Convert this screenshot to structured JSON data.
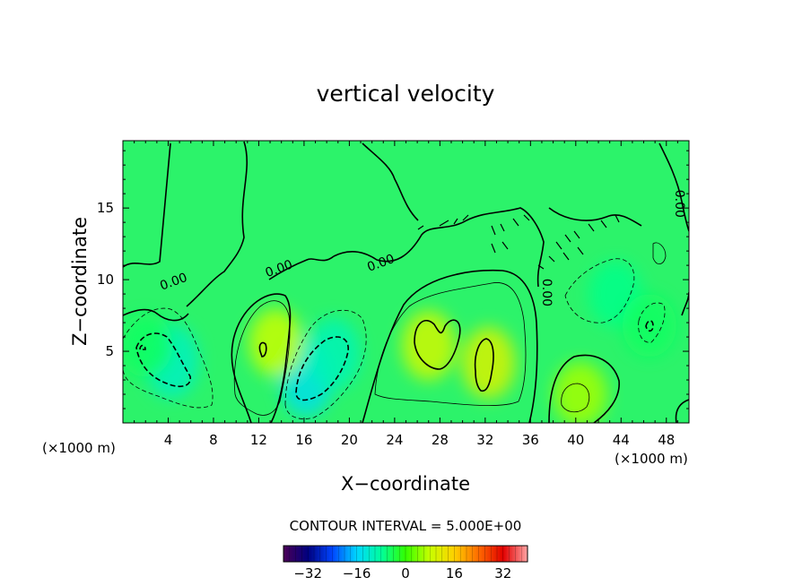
{
  "chart_data": {
    "type": "heatmap",
    "title": "vertical velocity",
    "xlabel": "X−coordinate",
    "ylabel": "Z−coordinate",
    "x_unit": "(×1000 m)",
    "z_unit": "(×1000 m)",
    "xlim": [
      0,
      50
    ],
    "ylim": [
      0,
      19.7
    ],
    "x_ticks": [
      "4",
      "8",
      "12",
      "16",
      "20",
      "24",
      "28",
      "32",
      "36",
      "40",
      "44",
      "48"
    ],
    "x_tick_values": [
      4,
      8,
      12,
      16,
      20,
      24,
      28,
      32,
      36,
      40,
      44,
      48
    ],
    "y_ticks": [
      "5",
      "10",
      "15"
    ],
    "y_tick_values": [
      5,
      10,
      15
    ],
    "contour_interval_text": "CONTOUR INTERVAL = 5.000E+00",
    "contour_labels": [
      {
        "text": "0.00",
        "x": 4.6,
        "z": 9.6
      },
      {
        "text": "0.00",
        "x": 13.9,
        "z": 10.5
      },
      {
        "text": "0.00",
        "x": 22.9,
        "z": 10.9
      },
      {
        "text": "0.00",
        "x": 37.1,
        "z": 9.1
      },
      {
        "text": "0.00",
        "x": 48.8,
        "z": 15.3
      }
    ],
    "colorbar": {
      "ticks": [
        "−32",
        "−16",
        "0",
        "16",
        "32"
      ],
      "tick_values": [
        -32,
        -16,
        0,
        16,
        32
      ],
      "range": [
        -40,
        40
      ],
      "stops": [
        "#4b0055",
        "#00007f",
        "#0045ff",
        "#00d6ff",
        "#00ff9c",
        "#33ff00",
        "#c8ff00",
        "#ffd000",
        "#ff6a00",
        "#e10000",
        "#ffa4a4"
      ]
    },
    "field_features": [
      {
        "x": 4.3,
        "z": 4.3,
        "w": -11
      },
      {
        "x": 16.2,
        "z": 3.2,
        "w": -14
      },
      {
        "x": 18.6,
        "z": 4.8,
        "w": -10
      },
      {
        "x": 2.0,
        "z": 5.4,
        "w": -5
      },
      {
        "x": 13.5,
        "z": 5.6,
        "w": 8
      },
      {
        "x": 27.0,
        "z": 5.4,
        "w": 9
      },
      {
        "x": 32.3,
        "z": 4.2,
        "w": 10
      },
      {
        "x": 40.4,
        "z": 2.0,
        "w": 6
      },
      {
        "x": 43.5,
        "z": 9.0,
        "w": -7
      },
      {
        "x": 46.5,
        "z": 6.8,
        "w": -5
      }
    ]
  }
}
